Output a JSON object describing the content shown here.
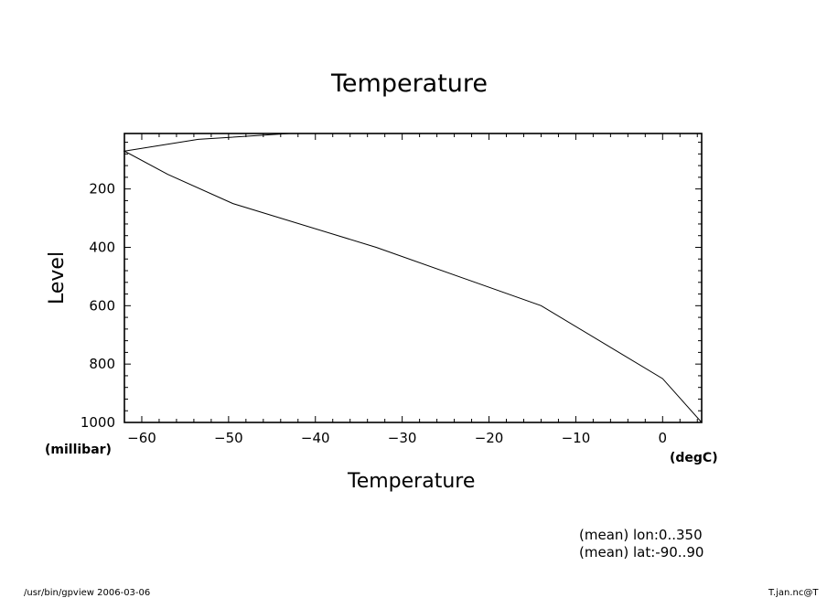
{
  "chart_data": {
    "type": "line",
    "title": "Temperature",
    "xlabel": "Temperature",
    "ylabel": "Level",
    "x_unit": "(degC)",
    "y_unit": "(millibar)",
    "xlim": [
      -62.0,
      4.5
    ],
    "ylim": [
      1000,
      10
    ],
    "y_inverted": true,
    "x_ticks": [
      -60,
      -50,
      -40,
      -30,
      -20,
      -10,
      0
    ],
    "y_ticks": [
      200,
      400,
      600,
      800,
      1000
    ],
    "grid": false,
    "series": [
      {
        "x": [
          4.5,
          0.0,
          -14.0,
          -33.0,
          -49.5,
          -57.0,
          -62.0,
          -53.5,
          -43.0
        ],
        "y": [
          1000,
          850,
          600,
          400,
          250,
          150,
          70,
          30,
          10
        ]
      }
    ]
  },
  "annotations": {
    "mean_lon": "(mean) lon:0..350",
    "mean_lat": "(mean) lat:-90..90"
  },
  "footer": {
    "program": "/usr/bin/gpview   2006-03-06",
    "file": "T.jan.nc@T"
  }
}
